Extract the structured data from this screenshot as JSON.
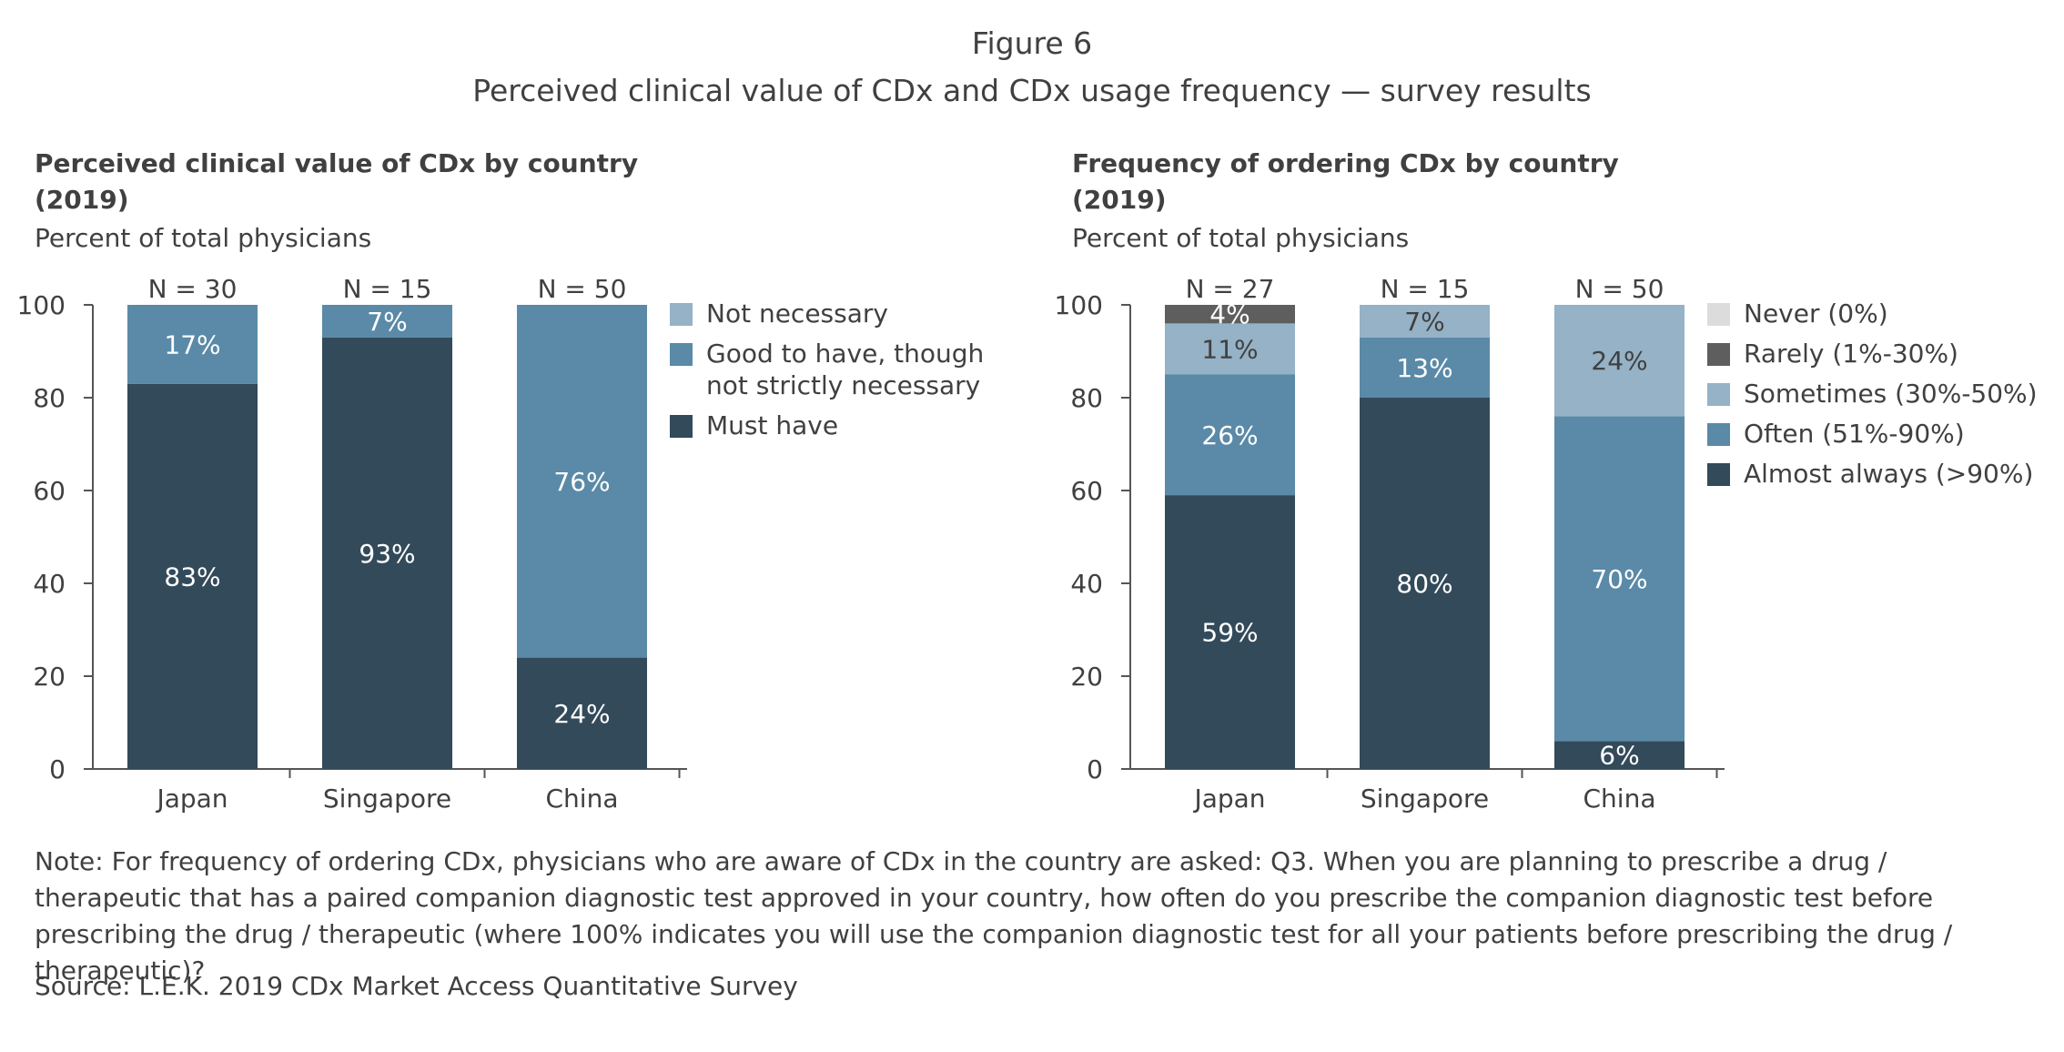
{
  "figure": {
    "label": "Figure 6",
    "title": "Perceived clinical value of CDx and CDx usage frequency — survey results"
  },
  "chart_data": [
    {
      "type": "bar",
      "stacked": true,
      "title_line1": "Perceived clinical value of CDx by country",
      "title_line2": "(2019)",
      "subtitle": "Percent of total physicians",
      "categories": [
        "Japan",
        "Singapore",
        "China"
      ],
      "sample_sizes": [
        "N = 30",
        "N = 15",
        "N = 50"
      ],
      "ylim": [
        0,
        100
      ],
      "yticks": [
        0,
        20,
        40,
        60,
        80,
        100
      ],
      "legend_position": "right",
      "series": [
        {
          "name": "Must have",
          "color": "#334a5a",
          "values": [
            83,
            93,
            24
          ],
          "labels": [
            "83%",
            "93%",
            "24%"
          ]
        },
        {
          "name": "Good to have, though not strictly necessary",
          "color": "#5a8aa7",
          "values": [
            17,
            7,
            76
          ],
          "labels": [
            "17%",
            "7%",
            "76%"
          ]
        },
        {
          "name": "Not necessary",
          "color": "#95b2c6",
          "values": [
            0,
            0,
            0
          ],
          "labels": [
            "",
            "",
            ""
          ]
        }
      ],
      "legend": [
        {
          "lines": [
            "Not necessary"
          ],
          "color": "#95b2c6"
        },
        {
          "lines": [
            "Good to have, though",
            "not strictly necessary"
          ],
          "color": "#5a8aa7"
        },
        {
          "lines": [
            "Must have"
          ],
          "color": "#334a5a"
        }
      ]
    },
    {
      "type": "bar",
      "stacked": true,
      "title_line1": "Frequency of ordering CDx by country",
      "title_line2": "(2019)",
      "subtitle": "Percent of total physicians",
      "categories": [
        "Japan",
        "Singapore",
        "China"
      ],
      "sample_sizes": [
        "N = 27",
        "N = 15",
        "N = 50"
      ],
      "ylim": [
        0,
        100
      ],
      "yticks": [
        0,
        20,
        40,
        60,
        80,
        100
      ],
      "legend_position": "right",
      "series": [
        {
          "name": "Almost always (>90%)",
          "color": "#334a5a",
          "values": [
            59,
            80,
            6
          ],
          "labels": [
            "59%",
            "80%",
            "6%"
          ]
        },
        {
          "name": "Often (51%-90%)",
          "color": "#5a8aa7",
          "values": [
            26,
            13,
            70
          ],
          "labels": [
            "26%",
            "13%",
            "70%"
          ]
        },
        {
          "name": "Sometimes (30%-50%)",
          "color": "#95b2c6",
          "values": [
            11,
            7,
            24
          ],
          "labels": [
            "11%",
            "7%",
            "24%"
          ]
        },
        {
          "name": "Rarely (1%-30%)",
          "color": "#5e5e5e",
          "values": [
            4,
            0,
            0
          ],
          "labels": [
            "4%",
            "",
            ""
          ]
        },
        {
          "name": "Never (0%)",
          "color": "#dcdcdc",
          "values": [
            0,
            0,
            0
          ],
          "labels": [
            "",
            "",
            ""
          ]
        }
      ],
      "legend": [
        {
          "lines": [
            "Never (0%)"
          ],
          "color": "#dcdcdc"
        },
        {
          "lines": [
            "Rarely (1%-30%)"
          ],
          "color": "#5e5e5e"
        },
        {
          "lines": [
            "Sometimes (30%-50%)"
          ],
          "color": "#95b2c6"
        },
        {
          "lines": [
            "Often (51%-90%)"
          ],
          "color": "#5a8aa7"
        },
        {
          "lines": [
            "Almost always (>90%)"
          ],
          "color": "#334a5a"
        }
      ]
    }
  ],
  "note": "Note: For frequency of ordering CDx, physicians who are aware of CDx in the country are asked: Q3. When you are planning to prescribe a drug / therapeutic that has a paired companion diagnostic test approved in your country, how often do you prescribe the companion diagnostic test before prescribing the drug / therapeutic (where 100% indicates you will use the companion diagnostic test for all your patients before prescribing the drug / therapeutic)?",
  "source": "Source: L.E.K. 2019 CDx Market Access Quantitative Survey"
}
